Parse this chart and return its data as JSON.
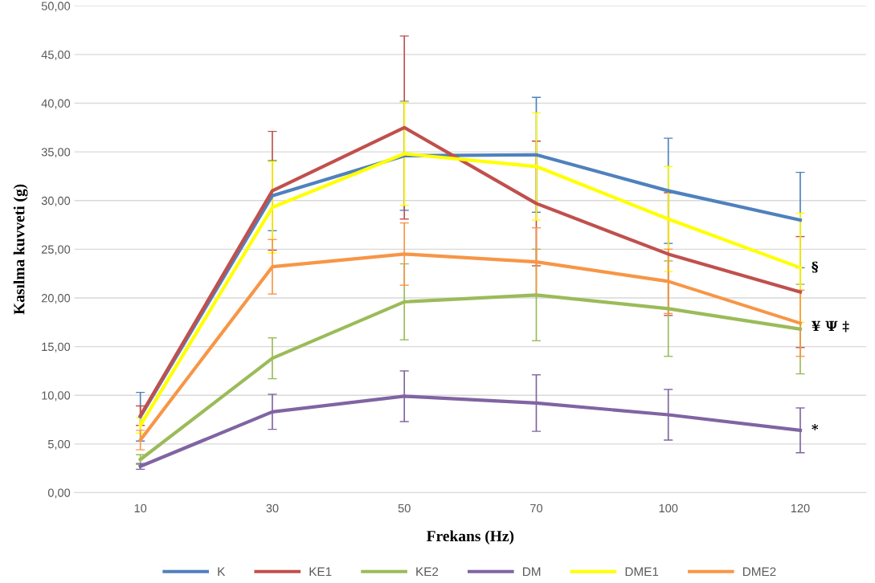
{
  "chart_data": {
    "type": "line",
    "xlabel": "Frekans (Hz)",
    "ylabel": "Kasılma kuvveti (g)",
    "categories": [
      "10",
      "30",
      "50",
      "70",
      "100",
      "120"
    ],
    "series": [
      {
        "name": "K",
        "color": "#4f81bd",
        "values": [
          7.8,
          30.5,
          34.6,
          34.7,
          31.0,
          28.0
        ],
        "errors": [
          2.5,
          3.6,
          5.6,
          5.9,
          5.4,
          4.9
        ]
      },
      {
        "name": "KE1",
        "color": "#c0504d",
        "values": [
          7.9,
          31.0,
          37.5,
          29.7,
          24.5,
          20.6
        ],
        "errors": [
          1.0,
          6.1,
          9.4,
          6.4,
          6.3,
          5.7
        ]
      },
      {
        "name": "KE2",
        "color": "#9bbb59",
        "values": [
          3.4,
          13.8,
          19.6,
          20.3,
          18.9,
          16.8
        ],
        "errors": [
          0.5,
          2.1,
          3.9,
          4.7,
          4.9,
          4.6
        ]
      },
      {
        "name": "DM",
        "color": "#8064a2",
        "values": [
          2.7,
          8.3,
          9.9,
          9.2,
          8.0,
          6.4
        ],
        "errors": [
          0.3,
          1.8,
          2.6,
          2.9,
          2.6,
          2.3
        ]
      },
      {
        "name": "DME1",
        "color": "#ffff00",
        "values": [
          6.9,
          29.3,
          34.8,
          33.5,
          28.1,
          23.1
        ],
        "errors": [
          0.8,
          4.7,
          5.3,
          5.5,
          5.4,
          5.6
        ]
      },
      {
        "name": "DME2",
        "color": "#f79646",
        "values": [
          5.4,
          23.2,
          24.5,
          23.7,
          21.7,
          17.4
        ],
        "errors": [
          1.0,
          2.8,
          3.2,
          3.5,
          3.3,
          3.4
        ]
      }
    ],
    "ylim": [
      0,
      50
    ],
    "yticks": [
      {
        "value": 0,
        "label": "0,00"
      },
      {
        "value": 5,
        "label": "5,00"
      },
      {
        "value": 10,
        "label": "10,00"
      },
      {
        "value": 15,
        "label": "15,00"
      },
      {
        "value": 20,
        "label": "20,00"
      },
      {
        "value": 25,
        "label": "25,00"
      },
      {
        "value": 30,
        "label": "30,00"
      },
      {
        "value": 35,
        "label": "35,00"
      },
      {
        "value": 40,
        "label": "40,00"
      },
      {
        "value": 45,
        "label": "45,00"
      },
      {
        "value": 50,
        "label": "50,00"
      }
    ],
    "grid": "y",
    "legend": "bottom",
    "marker": "none",
    "line_style": "solid",
    "annotations": [
      {
        "text": "§",
        "x": "120",
        "y": 23.1
      },
      {
        "text": "¥ Ψ ‡",
        "x": "120",
        "y": 17.0
      },
      {
        "text": "*",
        "x": "120",
        "y": 6.4
      }
    ]
  }
}
